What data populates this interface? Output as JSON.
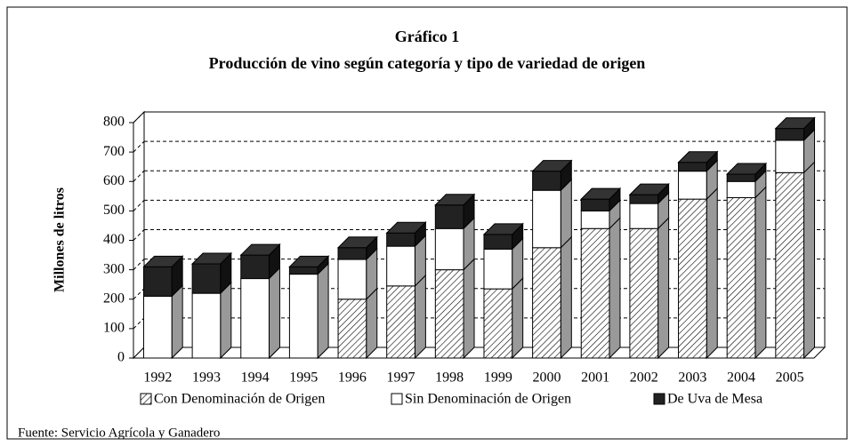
{
  "chart_data": {
    "type": "bar3d_stacked",
    "title": "Gráfico 1",
    "subtitle": "Producción de vino según categoría y tipo de variedad de origen",
    "y_label": "Millones de litros",
    "source": "Fuente: Servicio Agrícola y Ganadero",
    "categories": [
      "1992",
      "1993",
      "1994",
      "1995",
      "1996",
      "1997",
      "1998",
      "1999",
      "2000",
      "2001",
      "2002",
      "2003",
      "2004",
      "2005"
    ],
    "series": [
      {
        "name": "Con Denominación de Origen",
        "color": "#ffffff",
        "pattern": "diagonal-hatch",
        "values": [
          0,
          0,
          0,
          0,
          200,
          245,
          300,
          235,
          375,
          440,
          440,
          540,
          545,
          630
        ]
      },
      {
        "name": "Sin Denominación de Origen",
        "color": "#ffffff",
        "values": [
          210,
          220,
          270,
          285,
          135,
          135,
          140,
          135,
          195,
          60,
          85,
          95,
          55,
          110
        ]
      },
      {
        "name": "De Uva de Mesa",
        "color": "#222222",
        "values": [
          100,
          100,
          80,
          25,
          40,
          45,
          80,
          50,
          65,
          40,
          30,
          30,
          25,
          40
        ]
      }
    ],
    "ylim": [
      0,
      800
    ],
    "yticks": [
      0,
      100,
      200,
      300,
      400,
      500,
      600,
      700,
      800
    ],
    "grid": true,
    "legend": "bottom"
  }
}
